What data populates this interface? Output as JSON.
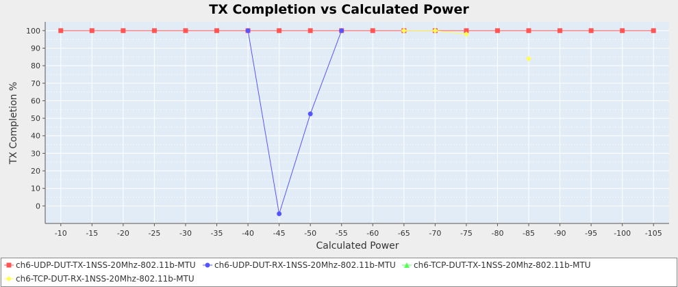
{
  "chart_data": {
    "type": "line",
    "title": "TX Completion vs Calculated Power",
    "xlabel": "Calculated Power",
    "ylabel": "TX Completion %",
    "categories": [
      "-10",
      "-15",
      "-20",
      "-25",
      "-30",
      "-35",
      "-40",
      "-45",
      "-50",
      "-55",
      "-60",
      "-65",
      "-70",
      "-75",
      "-80",
      "-85",
      "-90",
      "-95",
      "-100",
      "-105"
    ],
    "y_ticks": [
      0,
      10,
      20,
      30,
      40,
      50,
      60,
      70,
      80,
      90,
      100
    ],
    "ylim": [
      -10,
      105
    ],
    "grid": true,
    "legend_position": "bottom",
    "series": [
      {
        "name": "ch6-UDP-DUT-TX-1NSS-20Mhz-802.11b-MTU",
        "color": "#ff5555",
        "marker": "square",
        "values": [
          100,
          100,
          100,
          100,
          100,
          100,
          100,
          100,
          100,
          100,
          100,
          100,
          100,
          100,
          100,
          100,
          100,
          100,
          100,
          100
        ]
      },
      {
        "name": "ch6-UDP-DUT-RX-1NSS-20Mhz-802.11b-MTU",
        "color": "#5555ff",
        "marker": "circle",
        "values": [
          null,
          null,
          null,
          null,
          null,
          null,
          100,
          -4.5,
          52.5,
          100,
          null,
          null,
          null,
          null,
          null,
          null,
          null,
          null,
          null,
          null
        ]
      },
      {
        "name": "ch6-TCP-DUT-TX-1NSS-20Mhz-802.11b-MTU",
        "color": "#55ff55",
        "marker": "triangle",
        "values": [
          null,
          null,
          null,
          null,
          null,
          null,
          null,
          null,
          null,
          null,
          null,
          null,
          null,
          null,
          null,
          null,
          null,
          null,
          null,
          null
        ]
      },
      {
        "name": "ch6-TCP-DUT-RX-1NSS-20Mhz-802.11b-MTU",
        "color": "#ffff55",
        "marker": "diamond",
        "values": [
          null,
          null,
          null,
          null,
          null,
          null,
          null,
          null,
          null,
          null,
          null,
          100,
          100,
          98,
          null,
          84,
          null,
          null,
          null,
          null
        ]
      }
    ]
  }
}
